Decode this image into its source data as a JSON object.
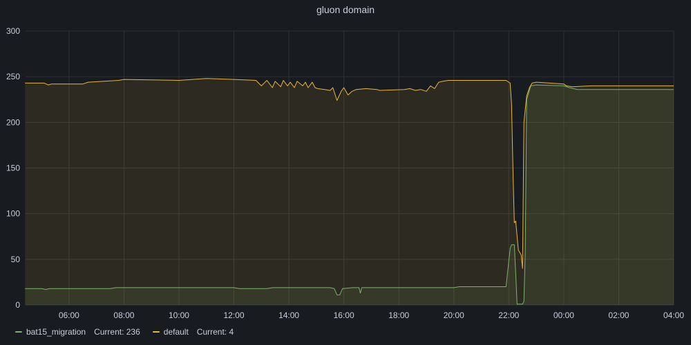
{
  "panel": {
    "title": "gluon domain"
  },
  "colors": {
    "background": "#181b1f",
    "grid": "#2f3136",
    "text": "#ccccdc"
  },
  "chart_data": {
    "type": "area",
    "title": "gluon domain",
    "xlabel": "",
    "ylabel": "",
    "ylim": [
      0,
      300
    ],
    "yticks": [
      0,
      50,
      100,
      150,
      200,
      250,
      300
    ],
    "xlim": [
      "04:25",
      "28:00"
    ],
    "xticks": [
      "06:00",
      "08:00",
      "10:00",
      "12:00",
      "14:00",
      "16:00",
      "18:00",
      "20:00",
      "22:00",
      "00:00",
      "02:00",
      "04:00"
    ],
    "grid": true,
    "legend_position": "bottom-left",
    "series": [
      {
        "name": "bat15_migration",
        "color": "#7eb26d",
        "current": 236,
        "points": [
          [
            4.4,
            18
          ],
          [
            5.0,
            18
          ],
          [
            5.15,
            17
          ],
          [
            5.3,
            18
          ],
          [
            7.5,
            18
          ],
          [
            7.7,
            19
          ],
          [
            10.0,
            19
          ],
          [
            12.0,
            19
          ],
          [
            12.2,
            18
          ],
          [
            13.2,
            18
          ],
          [
            13.4,
            19
          ],
          [
            15.5,
            19
          ],
          [
            15.65,
            18
          ],
          [
            15.75,
            11
          ],
          [
            15.85,
            11
          ],
          [
            15.95,
            18
          ],
          [
            16.3,
            19
          ],
          [
            16.55,
            19
          ],
          [
            16.6,
            13
          ],
          [
            16.65,
            19
          ],
          [
            20.0,
            19
          ],
          [
            20.2,
            20
          ],
          [
            21.9,
            20
          ],
          [
            22.05,
            62
          ],
          [
            22.1,
            66
          ],
          [
            22.2,
            66
          ],
          [
            22.25,
            35
          ],
          [
            22.3,
            1
          ],
          [
            22.5,
            1
          ],
          [
            22.55,
            4
          ],
          [
            22.6,
            60
          ],
          [
            22.65,
            225
          ],
          [
            22.8,
            240
          ],
          [
            23.0,
            241
          ],
          [
            24.0,
            240
          ],
          [
            24.2,
            238
          ],
          [
            24.5,
            236
          ],
          [
            25.0,
            236
          ],
          [
            26.0,
            236
          ],
          [
            28.0,
            236
          ]
        ]
      },
      {
        "name": "default",
        "color": "#eab839",
        "current": 4,
        "points": [
          [
            4.4,
            243
          ],
          [
            5.1,
            243
          ],
          [
            5.25,
            241
          ],
          [
            5.35,
            242
          ],
          [
            6.5,
            242
          ],
          [
            6.7,
            244
          ],
          [
            7.8,
            246
          ],
          [
            8.0,
            247
          ],
          [
            10.0,
            246
          ],
          [
            11.0,
            248
          ],
          [
            12.0,
            247
          ],
          [
            12.8,
            246
          ],
          [
            13.0,
            240
          ],
          [
            13.2,
            246
          ],
          [
            13.4,
            238
          ],
          [
            13.5,
            245
          ],
          [
            13.7,
            239
          ],
          [
            13.8,
            246
          ],
          [
            13.95,
            240
          ],
          [
            14.05,
            244
          ],
          [
            14.2,
            238
          ],
          [
            14.3,
            245
          ],
          [
            14.5,
            240
          ],
          [
            14.6,
            244
          ],
          [
            14.7,
            238
          ],
          [
            14.85,
            244
          ],
          [
            14.95,
            238
          ],
          [
            15.05,
            237
          ],
          [
            15.3,
            236
          ],
          [
            15.5,
            235
          ],
          [
            15.6,
            238
          ],
          [
            15.75,
            224
          ],
          [
            15.9,
            234
          ],
          [
            16.0,
            238
          ],
          [
            16.15,
            230
          ],
          [
            16.3,
            234
          ],
          [
            16.45,
            236
          ],
          [
            16.8,
            237
          ],
          [
            17.2,
            236
          ],
          [
            17.3,
            235
          ],
          [
            18.2,
            236
          ],
          [
            18.4,
            237
          ],
          [
            18.6,
            235
          ],
          [
            18.8,
            236
          ],
          [
            19.0,
            234
          ],
          [
            19.15,
            240
          ],
          [
            19.3,
            237
          ],
          [
            19.45,
            244
          ],
          [
            19.6,
            245
          ],
          [
            19.8,
            246
          ],
          [
            20.8,
            246
          ],
          [
            21.9,
            246
          ],
          [
            22.05,
            243
          ],
          [
            22.1,
            220
          ],
          [
            22.15,
            150
          ],
          [
            22.2,
            90
          ],
          [
            22.25,
            92
          ],
          [
            22.35,
            60
          ],
          [
            22.45,
            55
          ],
          [
            22.5,
            40
          ],
          [
            22.55,
            200
          ],
          [
            22.65,
            229
          ],
          [
            22.75,
            238
          ],
          [
            22.85,
            243
          ],
          [
            23.0,
            244
          ],
          [
            23.5,
            243
          ],
          [
            24.0,
            242
          ],
          [
            24.1,
            240
          ],
          [
            24.3,
            239
          ],
          [
            25.0,
            240
          ],
          [
            26.0,
            240
          ],
          [
            28.0,
            240
          ]
        ]
      }
    ]
  },
  "legend": [
    {
      "name": "bat15_migration",
      "current_label": "Current: 236",
      "color": "#7eb26d"
    },
    {
      "name": "default",
      "current_label": "Current: 4",
      "color": "#eab839"
    }
  ]
}
